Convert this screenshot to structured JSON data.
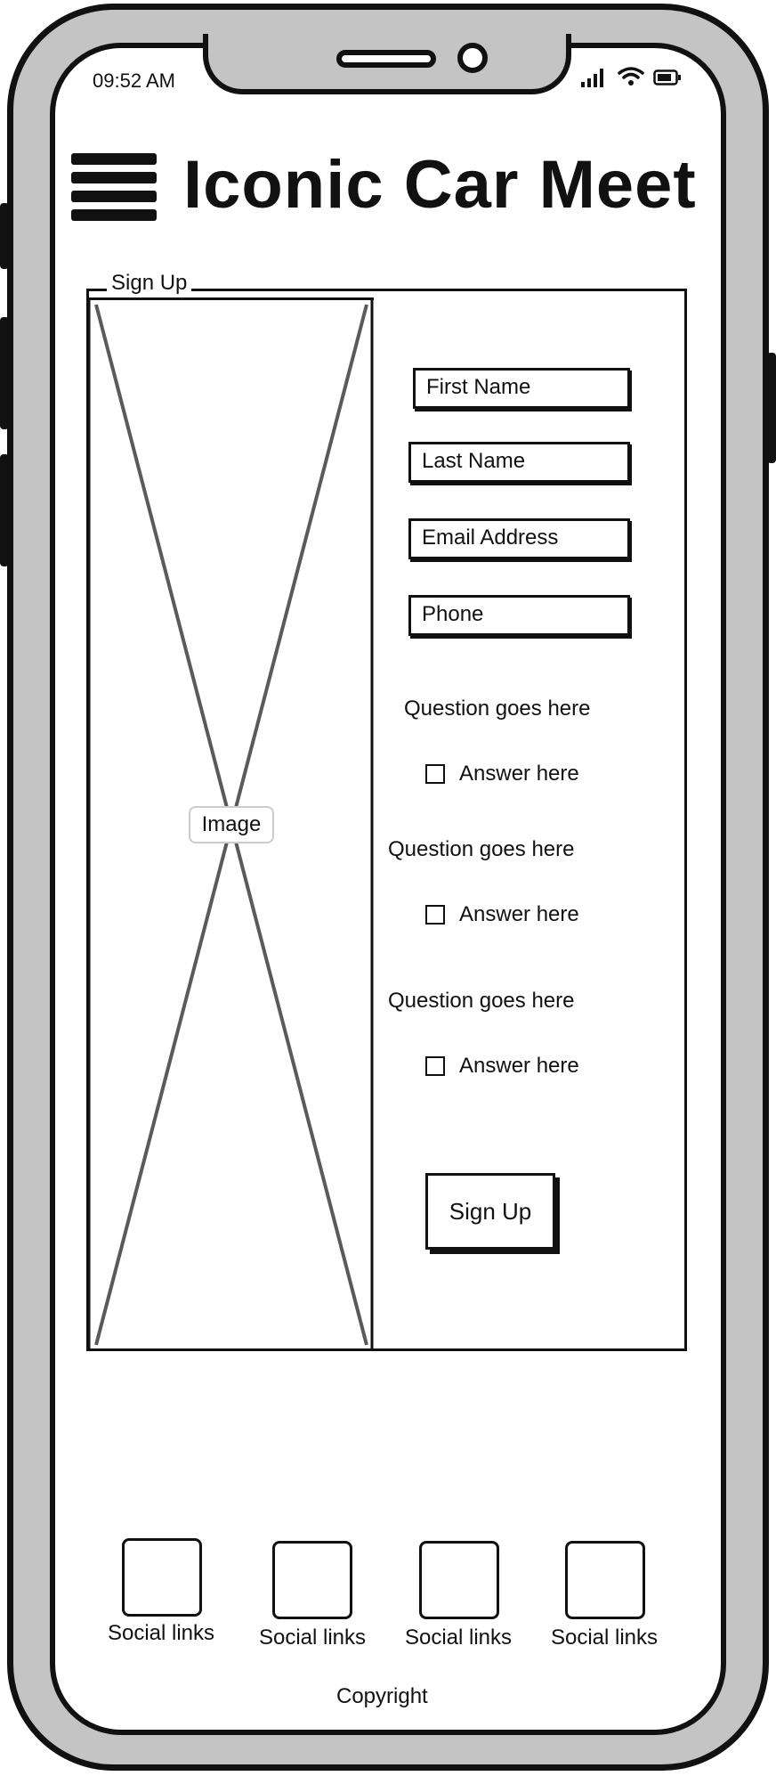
{
  "status_bar": {
    "time": "09:52 AM",
    "icons": [
      "signal-icon",
      "wifi-icon",
      "battery-icon"
    ]
  },
  "header": {
    "menu_icon": "hamburger-menu-icon",
    "title": "Iconic Car Meet"
  },
  "signup": {
    "legend": "Sign Up",
    "image_label": "Image",
    "fields": [
      {
        "placeholder": "First Name"
      },
      {
        "placeholder": "Last Name"
      },
      {
        "placeholder": "Email Address"
      },
      {
        "placeholder": "Phone"
      }
    ],
    "questions": [
      {
        "question": "Question goes here",
        "answer": "Answer here",
        "checked": false
      },
      {
        "question": "Question goes here",
        "answer": "Answer here",
        "checked": false
      },
      {
        "question": "Question goes here",
        "answer": "Answer here",
        "checked": false
      }
    ],
    "submit_label": "Sign Up"
  },
  "footer": {
    "social_links": [
      {
        "label": "Social links"
      },
      {
        "label": "Social links"
      },
      {
        "label": "Social links"
      },
      {
        "label": "Social links"
      }
    ],
    "copyright": "Copyright"
  },
  "colors": {
    "frame": "#c4c4c4",
    "ink": "#111111",
    "placeholder_cross": "#5a5a5a",
    "screen": "#ffffff"
  }
}
